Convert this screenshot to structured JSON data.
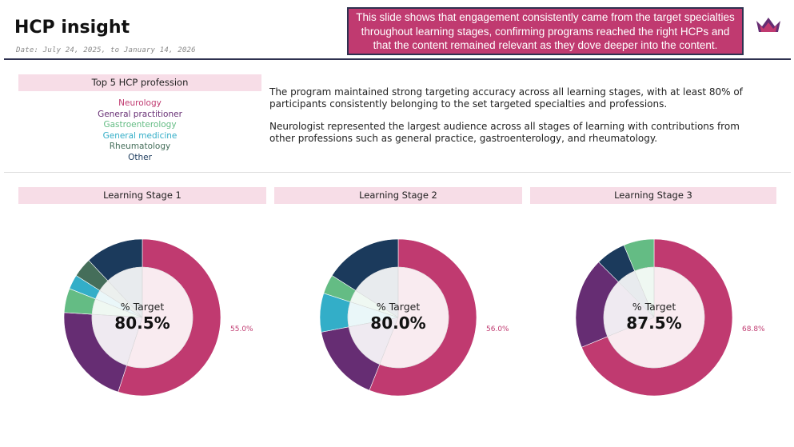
{
  "header": {
    "title": "HCP insight",
    "date": "Date: July 24, 2025, to January 14, 2026",
    "callout": "This slide shows that engagement consistently came from the target specialties throughout learning stages, confirming programs reached the right HCPs and that the content remained relevant as they dove deeper into the content."
  },
  "logo": {
    "icon": "crown-icon",
    "colors": [
      "#c03a70",
      "#662d73"
    ]
  },
  "professions": {
    "title": "Top 5 HCP profession",
    "items": [
      {
        "label": "Neurology",
        "color": "#c03a70"
      },
      {
        "label": "General practitioner",
        "color": "#662d73"
      },
      {
        "label": "Gastroenterology",
        "color": "#64bc84"
      },
      {
        "label": "General medicine",
        "color": "#33aec8"
      },
      {
        "label": "Rheumatology",
        "color": "#456e5a"
      },
      {
        "label": "Other",
        "color": "#1b3a5c"
      }
    ]
  },
  "narrative": {
    "p1": "The program maintained strong targeting accuracy across all learning stages, with at least 80% of participants consistently belonging to the set targeted specialties and professions.",
    "p2": "Neurologist represented the largest audience across all stages of learning with contributions from other professions such as general practice, gastroenterology, and rheumatology."
  },
  "chart_data": [
    {
      "type": "pie",
      "title": "Learning Stage 1",
      "center_caption": "% Target",
      "center_value": "80.5%",
      "categories": [
        "Neurology",
        "General practitioner",
        "Gastroenterology",
        "General medicine",
        "Rheumatology",
        "Other"
      ],
      "values": [
        55.0,
        21.0,
        5.0,
        3.0,
        4.0,
        12.0
      ],
      "colors": [
        "#c03a70",
        "#662d73",
        "#64bc84",
        "#33aec8",
        "#456e5a",
        "#1b3a5c"
      ],
      "labels": [
        "55.0%",
        "",
        "",
        "",
        "",
        ""
      ],
      "target_share": 80.5
    },
    {
      "type": "pie",
      "title": "Learning Stage 2",
      "center_caption": "% Target",
      "center_value": "80.0%",
      "categories": [
        "Neurology",
        "General practitioner",
        "General medicine",
        "Gastroenterology",
        "Other"
      ],
      "values": [
        56.0,
        16.0,
        8.0,
        4.0,
        16.0
      ],
      "colors": [
        "#c03a70",
        "#662d73",
        "#33aec8",
        "#64bc84",
        "#1b3a5c"
      ],
      "labels": [
        "56.0%",
        "",
        "",
        "",
        ""
      ],
      "target_share": 80.0
    },
    {
      "type": "pie",
      "title": "Learning Stage 3",
      "center_caption": "% Target",
      "center_value": "87.5%",
      "categories": [
        "Neurology",
        "General practitioner",
        "Other",
        "Gastroenterology"
      ],
      "values": [
        68.8,
        18.7,
        6.2,
        6.3
      ],
      "colors": [
        "#c03a70",
        "#662d73",
        "#1b3a5c",
        "#64bc84"
      ],
      "labels": [
        "68.8%",
        "",
        "",
        ""
      ],
      "target_share": 87.5
    }
  ]
}
